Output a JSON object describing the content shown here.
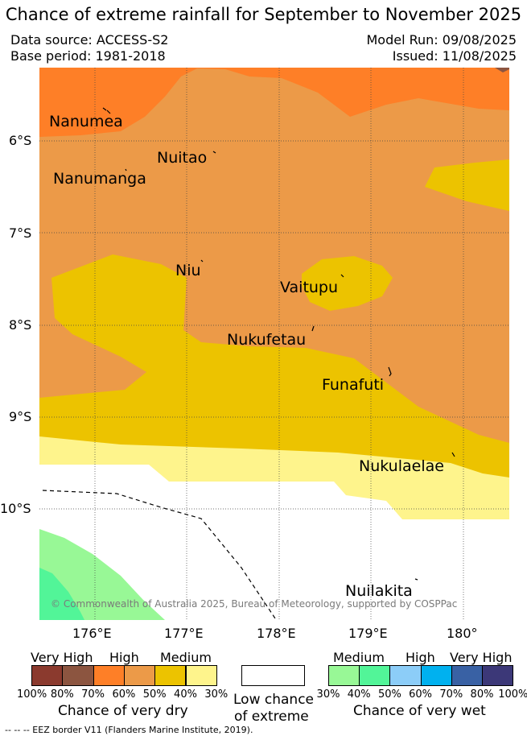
{
  "header": {
    "title": "Chance of extreme rainfall for September to November 2025",
    "data_source": "Data source: ACCESS-S2",
    "base_period": "Base period: 1981-2018",
    "model_run": "Model Run: 09/08/2025",
    "issued": "Issued: 11/08/2025"
  },
  "map": {
    "lat_labels": [
      "6°S",
      "7°S",
      "8°S",
      "9°S",
      "10°S"
    ],
    "lon_labels": [
      "176°E",
      "177°E",
      "178°E",
      "179°E",
      "180°"
    ],
    "places": [
      {
        "name": "Nanumea"
      },
      {
        "name": "Nuitao"
      },
      {
        "name": "Nanumanga"
      },
      {
        "name": "Niu"
      },
      {
        "name": "Vaitupu"
      },
      {
        "name": "Nukufetau"
      },
      {
        "name": "Funafuti"
      },
      {
        "name": "Nukulaelae"
      },
      {
        "name": "Nuilakita"
      }
    ],
    "copyright": "© Commonwealth of Australia 2025, Bureau of Meteorology, supported by COSPPac"
  },
  "legend": {
    "dry": {
      "categories": [
        "Very High",
        "High",
        "Medium"
      ],
      "percents": [
        "100%",
        "80%",
        "70%",
        "60%",
        "50%",
        "40%",
        "30%"
      ],
      "colors": [
        "#8b3a2e",
        "#8c5540",
        "#fe7f27",
        "#ec9a48",
        "#ecc300",
        "#fef48c"
      ],
      "title": "Chance of very dry"
    },
    "neutral": {
      "label_line1": "Low chance",
      "label_line2": "of extreme",
      "color": "#ffffff"
    },
    "wet": {
      "categories": [
        "Medium",
        "High",
        "Very High"
      ],
      "percents": [
        "30%",
        "40%",
        "50%",
        "60%",
        "70%",
        "80%",
        "100%"
      ],
      "colors": [
        "#98f896",
        "#52f598",
        "#8ccdf8",
        "#00b1ef",
        "#3961a4",
        "#3c3878"
      ],
      "title": "Chance of very wet"
    }
  },
  "footer": {
    "eez_note": "-- -- -- EEZ border V11 (Flanders Marine Institute, 2019)."
  }
}
